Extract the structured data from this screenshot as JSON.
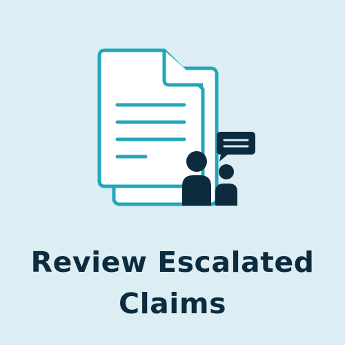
{
  "tile": {
    "title_line_1": "Review Escalated",
    "title_line_2": "Claims"
  },
  "colors": {
    "background": "#dcedf3",
    "document_stroke": "#23a7b8",
    "document_fill": "#ffffff",
    "people": "#0d2b3e",
    "title_text": "#0d2b3e"
  },
  "icons": {
    "document": "document-icon",
    "people": "people-icon",
    "speech_bubble": "speech-bubble-icon"
  }
}
